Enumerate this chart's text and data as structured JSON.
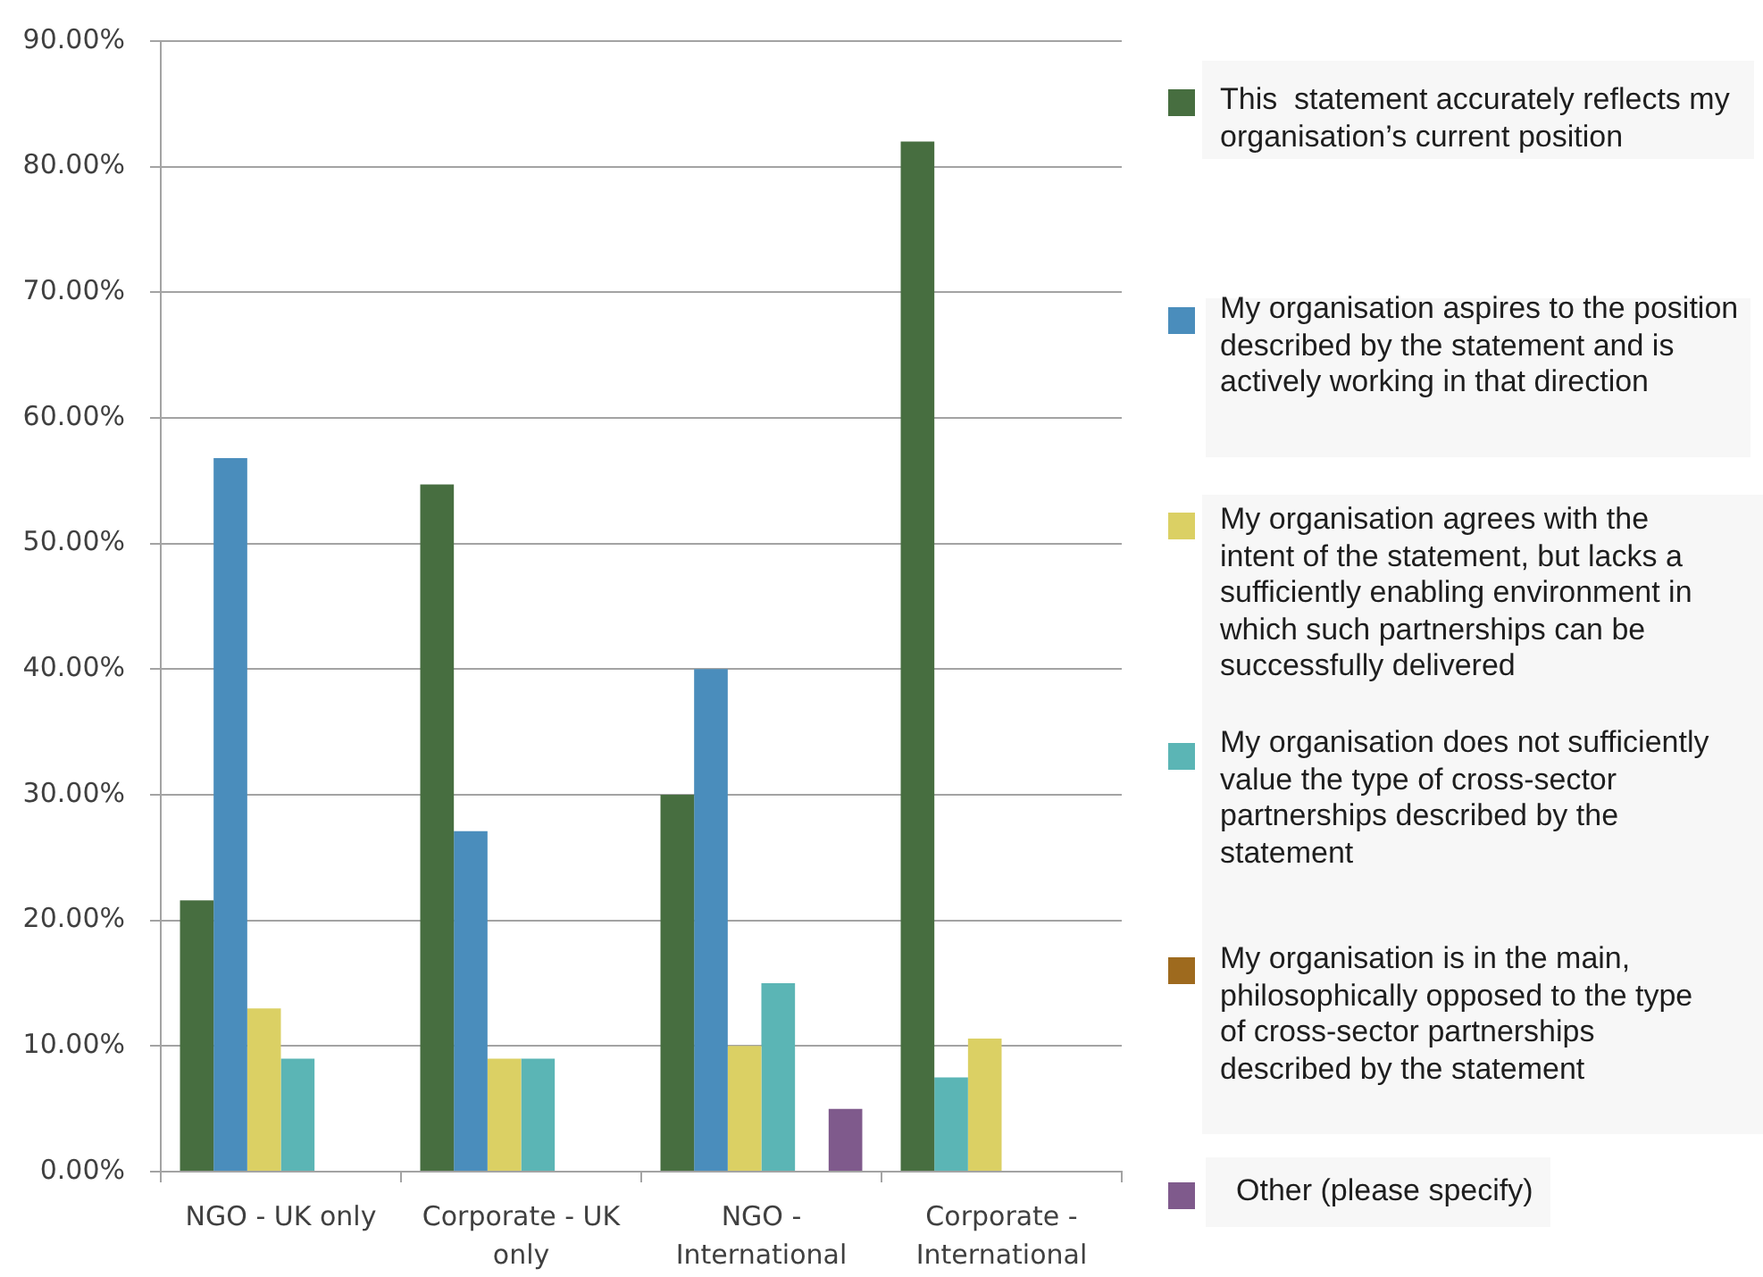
{
  "chart_data": {
    "type": "bar",
    "categories": [
      "NGO - UK only",
      "Corporate - UK only",
      "NGO - International",
      "Corporate - International"
    ],
    "series": [
      {
        "name": "This  statement accurately reflects my organisation’s current position",
        "color": "#476e40",
        "values": [
          21.6,
          54.7,
          30.0,
          82.0
        ]
      },
      {
        "name": "My organisation aspires to the position described by the statement and is actively working in that direction",
        "color": "#4a8dbc",
        "colors": [
          "#4a8dbc",
          "#4a8dbc",
          "#4a8dbc",
          "#5bb5b5"
        ],
        "values": [
          56.8,
          27.1,
          40.0,
          7.5
        ]
      },
      {
        "name": "My organisation agrees with the intent of the statement, but lacks a sufficiently enabling environment in which such partnerships can be successfully delivered",
        "color": "#dbd064",
        "values": [
          13.0,
          9.0,
          10.0,
          10.6
        ]
      },
      {
        "name": "My organisation does not sufficiently value the type of cross-sector partnerships described by the statement",
        "color": "#5bb5b5",
        "values": [
          9.0,
          9.0,
          15.0,
          null
        ]
      },
      {
        "name": "My organisation is in the main, philosophically opposed to the type of cross-sector partnerships described by the statement",
        "color": "#9e6a1e",
        "values": [
          null,
          null,
          null,
          null
        ]
      },
      {
        "name": "Other (please specify)",
        "color": "#7f5a8c",
        "values": [
          null,
          null,
          5.0,
          null
        ]
      }
    ],
    "ylim": [
      0,
      90
    ],
    "yticks": [
      {
        "value": 0,
        "label": "0.00%"
      },
      {
        "value": 10,
        "label": "10.00%"
      },
      {
        "value": 20,
        "label": "20.00%"
      },
      {
        "value": 30,
        "label": "30.00%"
      },
      {
        "value": 40,
        "label": "40.00%"
      },
      {
        "value": 50,
        "label": "50.00%"
      },
      {
        "value": 60,
        "label": "60.00%"
      },
      {
        "value": 70,
        "label": "70.00%"
      },
      {
        "value": 80,
        "label": "80.00%"
      },
      {
        "value": 90,
        "label": "90.00%"
      }
    ],
    "grid": "y",
    "legend": "right"
  }
}
